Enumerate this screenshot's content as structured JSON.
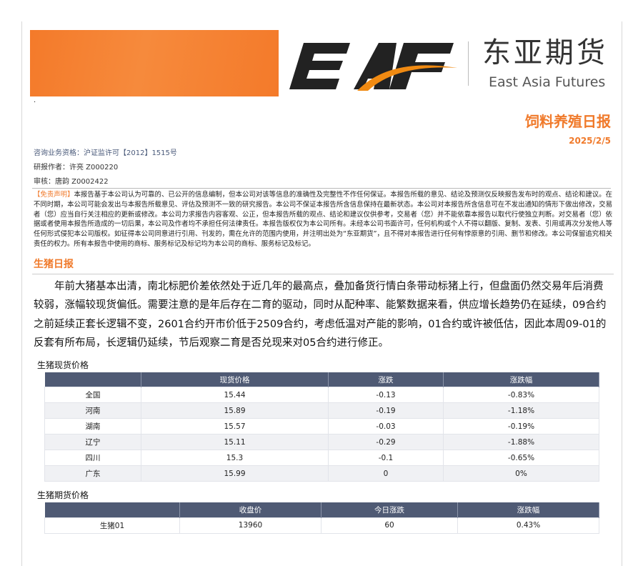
{
  "logo": {
    "text": "EAF",
    "cn": "东亚期货",
    "en": "East Asia Futures"
  },
  "colors": {
    "accent": "#f07a2b",
    "table_header": "#4f5a74"
  },
  "bullet": "·",
  "header": {
    "title": "饲料养殖日报",
    "date": "2025/2/5"
  },
  "info": [
    "咨询业务资格：沪证监许可【2012】1515号",
    "研报作者：许亮 Z000220",
    "审核：唐韵 Z0002422"
  ],
  "disclaimer": {
    "tag": "【免责声明】",
    "text": "本报告基于本公司认为可靠的、已公开的信息编制，但本公司对该等信息的准确性及完整性不作任何保证。本报告所载的意见、结论及预测仅反映报告发布时的观点、结论和建议。在不同时期，本公司可能会发出与本报告所载意见、评估及预测不一致的研究报告。本公司不保证本报告所含信息保持在最新状态。本公司对本报告所含信息可在不发出通知的情形下做出修改，交易者（您）应当自行关注相应的更新或修改。本公司力求报告内容客观、公正，但本报告所载的观点、结论和建议仅供参考，交易者（您）并不能依靠本报告以取代行使独立判断。对交易者（您）依据或者使用本报告所造成的一切后果，本公司及作者均不承担任何法律责任。本报告版权仅为本公司所有。未经本公司书面许可，任何机构或个人不得以翻版、复制、发表、引用或再次分发他人等任何形式侵犯本公司版权。如征得本公司同意进行引用、刊发的，需在允许的范围内使用，并注明出处为“东亚期货”，且不得对本报告进行任何有悖原意的引用、删节和修改。本公司保留追究相关责任的权力。所有本报告中使用的商标、服务标记及标记均为本公司的商标、服务标记及标记。"
  },
  "section": {
    "title": "生猪日报",
    "body": "年前大猪基本出清，南北标肥价差依然处于近几年的最高点，叠加备货行情白条带动标猪上行，但盘面仍然交易年后消费较弱，涨幅较现货偏低。需要注意的是年后存在二育的驱动，同时从配种率、能繁数据来看，供应增长趋势仍在延续，09合约之前延续正套长逻辑不变，2601合约开市价低于2509合约，考虑低温对产能的影响，01合约或许被低估，因此本周09-01的反套有所布局，长逻辑仍延续，节后观察二育是否兑现来对05合约进行修正。"
  },
  "spot": {
    "title": "生猪现货价格",
    "headers": [
      "",
      "现货价格",
      "涨跌",
      "涨跌幅"
    ],
    "rows": [
      [
        "全国",
        "15.44",
        "-0.13",
        "-0.83%"
      ],
      [
        "河南",
        "15.89",
        "-0.19",
        "-1.18%"
      ],
      [
        "湖南",
        "15.57",
        "-0.03",
        "-0.19%"
      ],
      [
        "辽宁",
        "15.11",
        "-0.29",
        "-1.88%"
      ],
      [
        "四川",
        "15.3",
        "-0.1",
        "-0.65%"
      ],
      [
        "广东",
        "15.99",
        "0",
        "0%"
      ]
    ]
  },
  "futures": {
    "title": "生猪期货价格",
    "headers": [
      "",
      "收盘价",
      "今日涨跌",
      "涨跌幅"
    ],
    "rows": [
      [
        "生猪01",
        "13960",
        "60",
        "0.43%"
      ]
    ]
  }
}
